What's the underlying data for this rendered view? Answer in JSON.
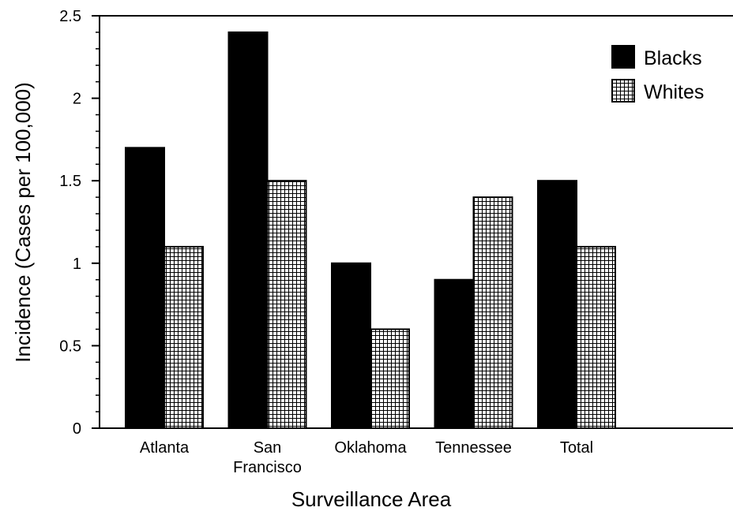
{
  "chart_data": {
    "type": "bar",
    "title": "",
    "xlabel": "Surveillance Area",
    "ylabel": "Incidence (Cases per 100,000)",
    "categories": [
      [
        "Atlanta"
      ],
      [
        "San",
        "Francisco"
      ],
      [
        "Oklahoma"
      ],
      [
        "Tennessee"
      ],
      [
        "Total"
      ]
    ],
    "series": [
      {
        "name": "Blacks",
        "values": [
          1.7,
          2.4,
          1.0,
          0.9,
          1.5
        ],
        "fill": "#000000",
        "pattern": "solid"
      },
      {
        "name": "Whites",
        "values": [
          1.1,
          1.5,
          0.6,
          1.4,
          1.1
        ],
        "fill": "#ffffff",
        "pattern": "grid"
      }
    ],
    "ylim": [
      0,
      2.5
    ],
    "yticks": [
      "0",
      "0.5",
      "1",
      "1.5",
      "2",
      "2.5"
    ],
    "grid": false,
    "legend_position": "top-right"
  }
}
